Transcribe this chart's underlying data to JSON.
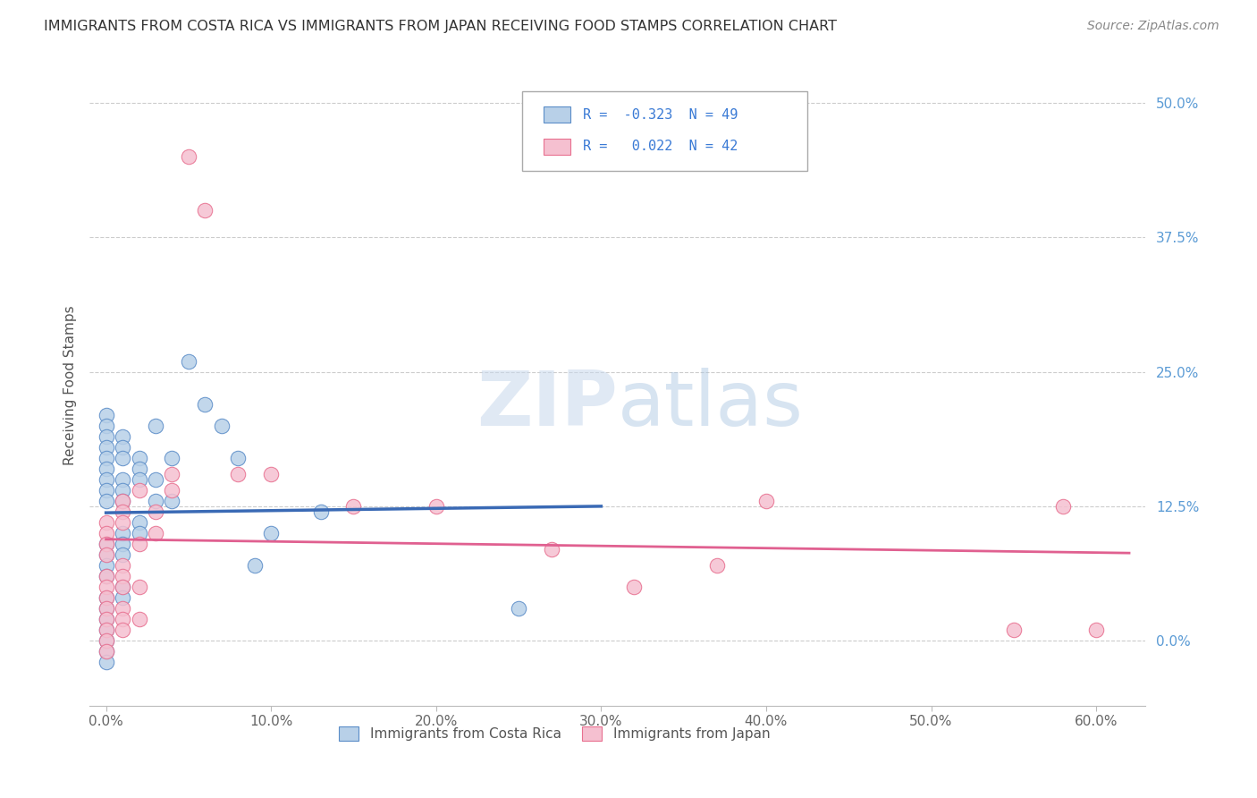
{
  "title": "IMMIGRANTS FROM COSTA RICA VS IMMIGRANTS FROM JAPAN RECEIVING FOOD STAMPS CORRELATION CHART",
  "source": "Source: ZipAtlas.com",
  "xlabel_ticks": [
    "0.0%",
    "10.0%",
    "20.0%",
    "30.0%",
    "40.0%",
    "50.0%",
    "60.0%"
  ],
  "xlabel_vals": [
    0.0,
    0.1,
    0.2,
    0.3,
    0.4,
    0.5,
    0.6
  ],
  "ylabel_ticks": [
    "0.0%",
    "12.5%",
    "25.0%",
    "37.5%",
    "50.0%"
  ],
  "ylabel_vals": [
    0.0,
    0.125,
    0.25,
    0.375,
    0.5
  ],
  "xlim": [
    -0.01,
    0.63
  ],
  "ylim": [
    -0.06,
    0.535
  ],
  "watermark_zip": "ZIP",
  "watermark_atlas": "atlas",
  "legend_blue_label": "Immigrants from Costa Rica",
  "legend_pink_label": "Immigrants from Japan",
  "blue_R": -0.323,
  "blue_N": 49,
  "pink_R": 0.022,
  "pink_N": 42,
  "blue_color": "#b8d0e8",
  "pink_color": "#f5c0d0",
  "blue_edge_color": "#5b8dc8",
  "pink_edge_color": "#e87090",
  "blue_line_color": "#3a6ab5",
  "pink_line_color": "#e06090",
  "blue_scatter": [
    [
      0.0,
      0.21
    ],
    [
      0.0,
      0.2
    ],
    [
      0.0,
      0.19
    ],
    [
      0.0,
      0.18
    ],
    [
      0.0,
      0.17
    ],
    [
      0.0,
      0.16
    ],
    [
      0.0,
      0.15
    ],
    [
      0.0,
      0.14
    ],
    [
      0.0,
      0.13
    ],
    [
      0.0,
      0.09
    ],
    [
      0.0,
      0.08
    ],
    [
      0.0,
      0.07
    ],
    [
      0.0,
      0.06
    ],
    [
      0.0,
      0.04
    ],
    [
      0.0,
      0.03
    ],
    [
      0.0,
      0.02
    ],
    [
      0.0,
      0.01
    ],
    [
      0.0,
      0.0
    ],
    [
      0.0,
      -0.01
    ],
    [
      0.0,
      -0.02
    ],
    [
      0.01,
      0.19
    ],
    [
      0.01,
      0.18
    ],
    [
      0.01,
      0.17
    ],
    [
      0.01,
      0.15
    ],
    [
      0.01,
      0.14
    ],
    [
      0.01,
      0.13
    ],
    [
      0.01,
      0.1
    ],
    [
      0.01,
      0.09
    ],
    [
      0.01,
      0.08
    ],
    [
      0.01,
      0.05
    ],
    [
      0.01,
      0.04
    ],
    [
      0.02,
      0.17
    ],
    [
      0.02,
      0.16
    ],
    [
      0.02,
      0.15
    ],
    [
      0.02,
      0.11
    ],
    [
      0.02,
      0.1
    ],
    [
      0.03,
      0.2
    ],
    [
      0.03,
      0.15
    ],
    [
      0.03,
      0.13
    ],
    [
      0.04,
      0.17
    ],
    [
      0.04,
      0.13
    ],
    [
      0.05,
      0.26
    ],
    [
      0.06,
      0.22
    ],
    [
      0.07,
      0.2
    ],
    [
      0.08,
      0.17
    ],
    [
      0.09,
      0.07
    ],
    [
      0.1,
      0.1
    ],
    [
      0.13,
      0.12
    ],
    [
      0.25,
      0.03
    ]
  ],
  "pink_scatter": [
    [
      0.0,
      0.11
    ],
    [
      0.0,
      0.1
    ],
    [
      0.0,
      0.09
    ],
    [
      0.0,
      0.08
    ],
    [
      0.0,
      0.06
    ],
    [
      0.0,
      0.05
    ],
    [
      0.0,
      0.04
    ],
    [
      0.0,
      0.03
    ],
    [
      0.0,
      0.02
    ],
    [
      0.0,
      0.01
    ],
    [
      0.0,
      0.0
    ],
    [
      0.0,
      -0.01
    ],
    [
      0.01,
      0.13
    ],
    [
      0.01,
      0.12
    ],
    [
      0.01,
      0.11
    ],
    [
      0.01,
      0.07
    ],
    [
      0.01,
      0.06
    ],
    [
      0.01,
      0.05
    ],
    [
      0.01,
      0.03
    ],
    [
      0.01,
      0.02
    ],
    [
      0.01,
      0.01
    ],
    [
      0.02,
      0.14
    ],
    [
      0.02,
      0.09
    ],
    [
      0.02,
      0.05
    ],
    [
      0.02,
      0.02
    ],
    [
      0.03,
      0.12
    ],
    [
      0.03,
      0.1
    ],
    [
      0.04,
      0.155
    ],
    [
      0.04,
      0.14
    ],
    [
      0.05,
      0.45
    ],
    [
      0.06,
      0.4
    ],
    [
      0.08,
      0.155
    ],
    [
      0.1,
      0.155
    ],
    [
      0.15,
      0.125
    ],
    [
      0.2,
      0.125
    ],
    [
      0.27,
      0.085
    ],
    [
      0.32,
      0.05
    ],
    [
      0.37,
      0.07
    ],
    [
      0.4,
      0.13
    ],
    [
      0.55,
      0.01
    ],
    [
      0.58,
      0.125
    ],
    [
      0.6,
      0.01
    ]
  ]
}
